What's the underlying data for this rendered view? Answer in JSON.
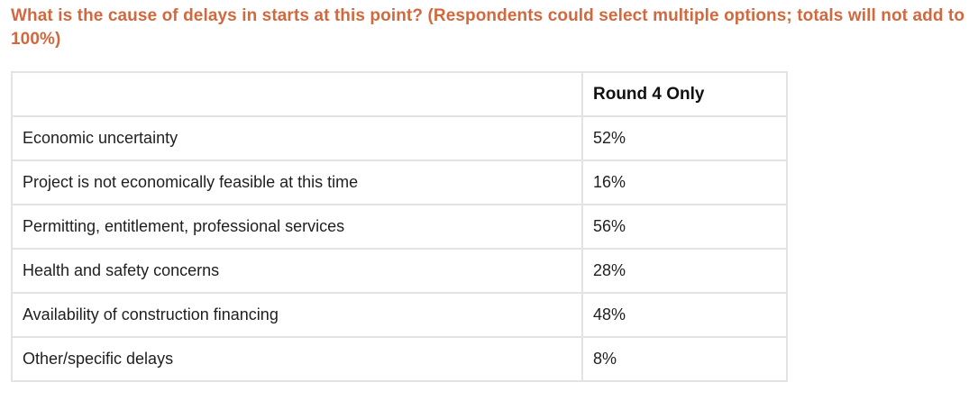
{
  "title": {
    "text": "What is the cause of delays in starts at this point? (Respondents could select multiple options; totals will not add to 100%)"
  },
  "table": {
    "header": {
      "label_col": "",
      "value_col": "Round 4 Only"
    },
    "rows": [
      {
        "label": "Economic uncertainty",
        "value": "52%"
      },
      {
        "label": "Project is not economically feasible at this time",
        "value": "16%"
      },
      {
        "label": "Permitting, entitlement, professional services",
        "value": "56%"
      },
      {
        "label": "Health and safety concerns",
        "value": "28%"
      },
      {
        "label": "Availability of construction financing",
        "value": "48%"
      },
      {
        "label": "Other/specific delays",
        "value": "8%"
      }
    ]
  },
  "colors": {
    "title_orange": "#d2693e",
    "border_gray": "#e3e3e3",
    "cell_text": "#1f1f1f"
  },
  "chart_data": {
    "type": "table",
    "title": "What is the cause of delays in starts at this point? (Respondents could select multiple options; totals will not add to 100%)",
    "columns": [
      "",
      "Round 4 Only"
    ],
    "categories": [
      "Economic uncertainty",
      "Project is not economically feasible at this time",
      "Permitting, entitlement, professional services",
      "Health and safety concerns",
      "Availability of construction financing",
      "Other/specific delays"
    ],
    "values": [
      52,
      16,
      56,
      28,
      48,
      8
    ],
    "value_unit": "percent"
  }
}
